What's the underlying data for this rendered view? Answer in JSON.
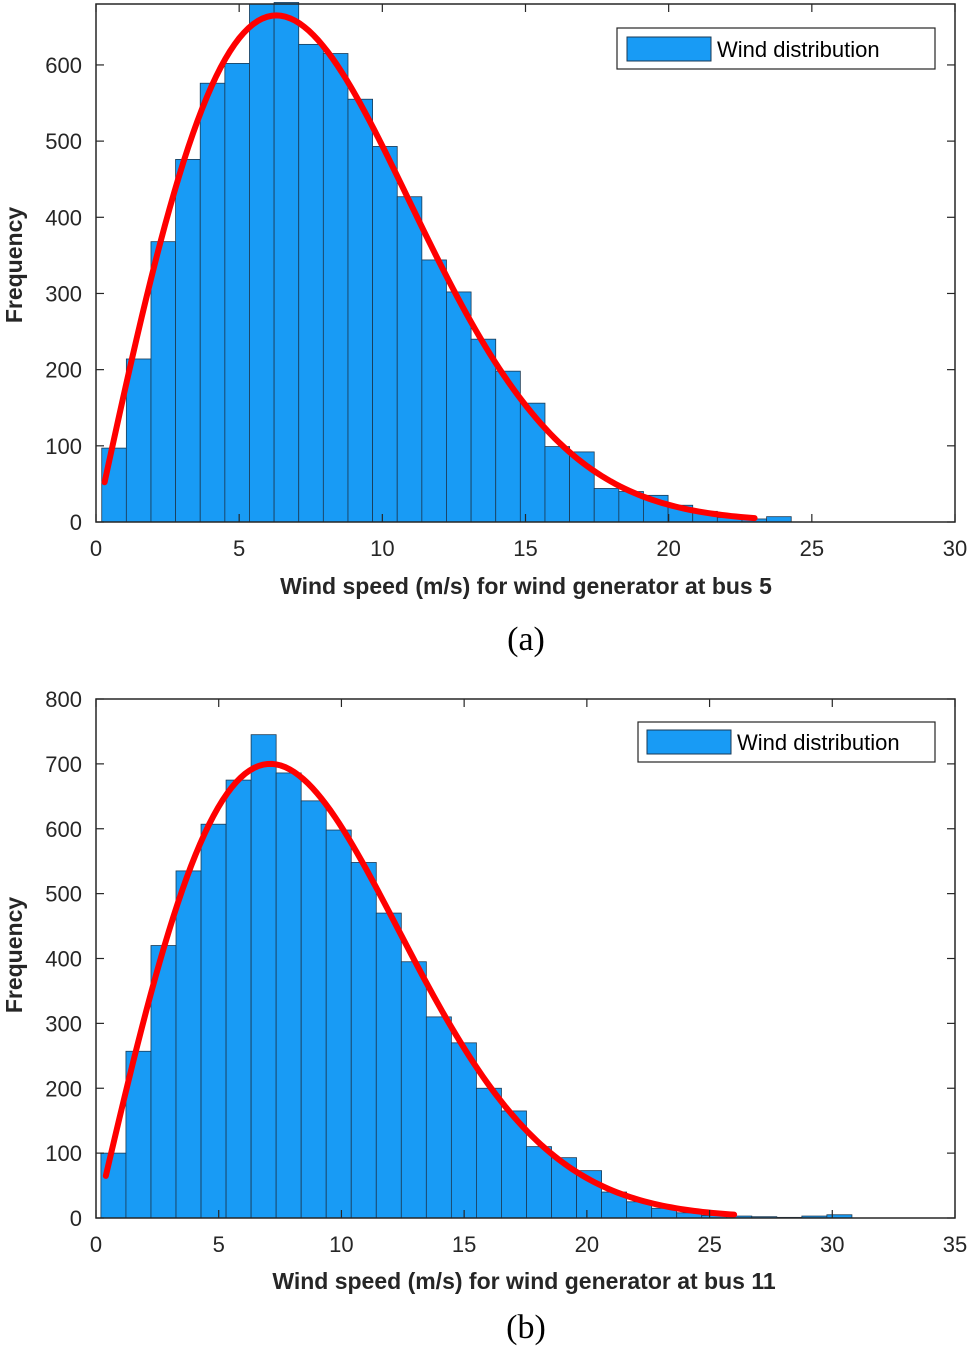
{
  "colors": {
    "bar_fill": "#189BF5",
    "bar_edge": "#1a3a55",
    "fit_line": "#FF0000",
    "axis": "#262626"
  },
  "chart_data": [
    {
      "type": "bar",
      "caption": "(a)",
      "xlabel": "Wind speed (m/s) for wind generator at bus 5",
      "ylabel": "Frequency",
      "legend": "Wind distribution",
      "legend_position": "top-right",
      "xlim": [
        0,
        30
      ],
      "ylim": [
        0,
        680
      ],
      "xticks": [
        0,
        5,
        10,
        15,
        20,
        25,
        30
      ],
      "yticks": [
        0,
        100,
        200,
        300,
        400,
        500,
        600
      ],
      "bin_start": 0.2,
      "bin_width": 0.86,
      "values": [
        97,
        214,
        368,
        476,
        576,
        602,
        680,
        682,
        627,
        615,
        555,
        493,
        427,
        344,
        302,
        240,
        198,
        156,
        99,
        92,
        44,
        40,
        35,
        22,
        14,
        6,
        4,
        7
      ],
      "fit": {
        "distribution": "rayleigh-like",
        "x_start": 0.3,
        "x_end": 23,
        "peak_x": 6.3,
        "peak_y": 665,
        "start_y": 58,
        "end_y": 7
      }
    },
    {
      "type": "bar",
      "caption": "(b)",
      "xlabel": "Wind speed (m/s) for wind generator at bus 11",
      "ylabel": "Frequency",
      "legend": "Wind distribution",
      "legend_position": "top-right",
      "xlim": [
        0,
        35
      ],
      "ylim": [
        0,
        800
      ],
      "xticks": [
        0,
        5,
        10,
        15,
        20,
        25,
        30,
        35
      ],
      "yticks": [
        0,
        100,
        200,
        300,
        400,
        500,
        600,
        700,
        800
      ],
      "bin_start": 0.2,
      "bin_width": 1.02,
      "values": [
        100,
        257,
        420,
        535,
        607,
        675,
        745,
        686,
        643,
        598,
        548,
        470,
        395,
        310,
        270,
        200,
        165,
        110,
        93,
        73,
        40,
        25,
        15,
        8,
        4,
        3,
        2,
        1,
        3,
        5
      ],
      "fit": {
        "distribution": "rayleigh-like",
        "x_start": 0.4,
        "x_end": 26,
        "peak_x": 7.1,
        "peak_y": 700,
        "start_y": 63,
        "end_y": 6
      }
    }
  ]
}
